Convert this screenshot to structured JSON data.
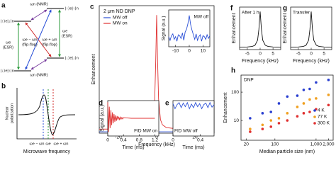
{
  "diagram_a": {
    "panel": "a",
    "kets": [
      "|↑⟩e|↓⟩n",
      "|↑⟩e|↑⟩n",
      "|↓⟩e|↑⟩n",
      "|↓⟩e|↓⟩n"
    ],
    "nmr_top": "ωn (NMR)",
    "nmr_bottom": "ωn (NMR)",
    "esr_left": [
      "ωe",
      "(ESR)"
    ],
    "esr_right": [
      "ωe",
      "(ESR)"
    ],
    "flip_minus": [
      "ωe − ωn",
      "(flip-flop)"
    ],
    "flip_plus": [
      "ωe + ωn",
      "(flip-flop)"
    ]
  },
  "diagram_b": {
    "panel": "b",
    "ylabel": [
      "Nuclear",
      "polarization"
    ],
    "xlabel": "Microwave frequency",
    "markers": [
      "ωe − ωn",
      "ωe",
      "ωe + ωn"
    ]
  },
  "chart_data": [
    {
      "type": "line",
      "panel": "c",
      "title": "2 μm ND DNP",
      "xlabel": "Frequency (kHz)",
      "ylabel": "Enhancement",
      "legend": "upper left",
      "x": [
        -30,
        -20,
        -10,
        -5,
        -3,
        -2,
        -1,
        -0.5,
        0,
        0.5,
        1,
        2,
        3,
        5,
        10,
        20,
        30
      ],
      "series": [
        {
          "name": "MW off",
          "color": "#2a4fd6",
          "values": [
            1,
            1,
            1,
            1,
            1,
            1,
            1,
            1,
            1,
            1,
            1,
            1,
            1,
            1,
            1,
            1,
            1
          ]
        },
        {
          "name": "MW on",
          "color": "#e03030",
          "values": [
            3,
            3.1,
            3.3,
            4.2,
            6.3,
            10,
            25.5,
            53.3,
            88,
            53.3,
            25.5,
            10,
            6.3,
            4.2,
            3.3,
            3.1,
            3
          ]
        }
      ],
      "xlim": [
        -30,
        30
      ],
      "ylim": [
        0,
        95
      ],
      "xticks": [
        -20,
        0,
        20
      ]
    },
    {
      "type": "line",
      "ylabel": "Signal (a.u.)",
      "annotation": "MW off",
      "x": [
        -15,
        -14,
        -13,
        -12,
        -11,
        -10,
        -9,
        -8,
        -7,
        -6,
        -5,
        -4,
        -3,
        -2,
        -1,
        0,
        1,
        2,
        3,
        4,
        5,
        6,
        7,
        8,
        9,
        10,
        11,
        12,
        13,
        14,
        15
      ],
      "series": [
        {
          "color": "#2a4fd6",
          "values": [
            0.1,
            -0.3,
            0.2,
            0.4,
            -0.2,
            0.1,
            -0.4,
            0.3,
            0.2,
            -0.1,
            0.5,
            -0.3,
            0.6,
            0.9,
            1.5,
            2.4,
            1.4,
            0.8,
            0.3,
            -0.2,
            0.4,
            -0.3,
            0.1,
            0.3,
            -0.4,
            0.2,
            0.1,
            -0.2,
            0.3,
            -0.1,
            0.2
          ]
        }
      ],
      "xlim": [
        -15,
        15
      ],
      "ylim": [
        -1,
        3
      ],
      "xticks": [
        -10,
        0,
        10
      ]
    },
    {
      "type": "line",
      "panel": "d",
      "annotation": "FID MW on",
      "xlabel": "Time (ms)",
      "ylabel": "Signal (a.u.)",
      "x": [
        0,
        0.02,
        0.04,
        0.06,
        0.08,
        0.1,
        0.12,
        0.14,
        0.16,
        0.18,
        0.2,
        0.22,
        0.24,
        0.26,
        0.28,
        0.3,
        0.32,
        0.34,
        0.36,
        0.38,
        0.4,
        0.6,
        0.8,
        1.0,
        1.2
      ],
      "series": [
        {
          "color": "#e03030",
          "values": [
            1,
            -0.85,
            0.72,
            -0.61,
            0.51,
            -0.43,
            0.37,
            -0.31,
            0.26,
            -0.22,
            0.19,
            -0.16,
            0.14,
            -0.11,
            0.1,
            -0.08,
            0.07,
            -0.06,
            0.05,
            -0.04,
            0.04,
            0,
            0,
            0,
            0
          ]
        }
      ],
      "xlim": [
        0,
        1.3
      ],
      "ylim": [
        -1.1,
        1.1
      ],
      "xticks": [
        0,
        0.4,
        0.8,
        1.2
      ]
    },
    {
      "type": "line",
      "panel": "e",
      "annotation": "FID MW off",
      "xlabel": "Time (ms)",
      "x": [
        0,
        0.03,
        0.06,
        0.09,
        0.12,
        0.15,
        0.18,
        0.21,
        0.24,
        0.27,
        0.3,
        0.33,
        0.36,
        0.39,
        0.42,
        0.45,
        0.48,
        0.51,
        0.54,
        0.57,
        0.6
      ],
      "series": [
        {
          "color": "#2a4fd6",
          "values": [
            0.2,
            -0.3,
            0.1,
            0.3,
            -0.2,
            0.25,
            -0.1,
            0.3,
            -0.3,
            0.15,
            -0.2,
            0.3,
            -0.1,
            0.2,
            -0.3,
            0.1,
            0.25,
            -0.2,
            0.3,
            -0.15,
            0.1
          ]
        }
      ],
      "xlim": [
        0,
        0.6
      ],
      "ylim": [
        -3,
        0.5
      ],
      "xticks": [
        0,
        0.4
      ]
    },
    {
      "type": "line",
      "panel": "f",
      "annotation": "After 1 h",
      "xlabel": "Frequency (kHz)",
      "ylabel": "Enhancement",
      "x": [
        -8,
        -5,
        -3,
        -2,
        -1,
        -0.5,
        0,
        0.5,
        1,
        2,
        3,
        5,
        8
      ],
      "series": [
        {
          "color": "#111111",
          "values": [
            5.3,
            5.8,
            7.2,
            9.7,
            21,
            45,
            85,
            45,
            21,
            9.7,
            7.2,
            5.8,
            5.3
          ]
        }
      ],
      "xlim": [
        -8,
        8
      ],
      "ylim": [
        0,
        95
      ],
      "xticks": [
        -5,
        0,
        5
      ]
    },
    {
      "type": "line",
      "panel": "g",
      "annotation": "Transfer",
      "xlabel": "Frequency (kHz)",
      "ylabel": "Enhancement",
      "x": [
        -8,
        -5,
        -3,
        -2,
        -1,
        -0.5,
        0,
        0.5,
        1,
        2,
        3,
        5,
        8
      ],
      "series": [
        {
          "color": "#111111",
          "values": [
            5.3,
            5.8,
            7.2,
            9.7,
            21,
            45,
            85,
            45,
            21,
            9.7,
            7.2,
            5.8,
            5.3
          ]
        }
      ],
      "xlim": [
        -8,
        8
      ],
      "ylim": [
        0,
        95
      ],
      "xticks": [
        -5,
        0,
        5
      ]
    },
    {
      "type": "scatter",
      "panel": "h",
      "annotation": "DNP",
      "xlabel": "Median particle size (nm)",
      "ylabel": "Enhancement",
      "legend": "center right",
      "xlog": true,
      "ylog": true,
      "x": [
        25,
        50,
        80,
        125,
        200,
        350,
        500,
        700,
        1000,
        2000
      ],
      "series": [
        {
          "name": "4 K",
          "color": "#2a3fd0",
          "values": [
            12,
            18,
            20,
            40,
            70,
            75,
            120,
            130,
            220,
            270
          ]
        },
        {
          "name": "77 K",
          "color": "#f0a020",
          "values": [
            5,
            7,
            10,
            12,
            18,
            30,
            40,
            55,
            60,
            80
          ]
        },
        {
          "name": "300 K",
          "color": "#e03030",
          "values": [
            4,
            5,
            6,
            8,
            10,
            14,
            18,
            20,
            25,
            35
          ]
        }
      ],
      "xlim": [
        15,
        2600
      ],
      "ylim": [
        2,
        400
      ],
      "xticks": [
        20,
        100,
        {
          "value": 1000,
          "label": "1,000"
        },
        {
          "value": 2000,
          "label": "2,000"
        }
      ],
      "yticks": [
        10,
        100
      ]
    }
  ]
}
